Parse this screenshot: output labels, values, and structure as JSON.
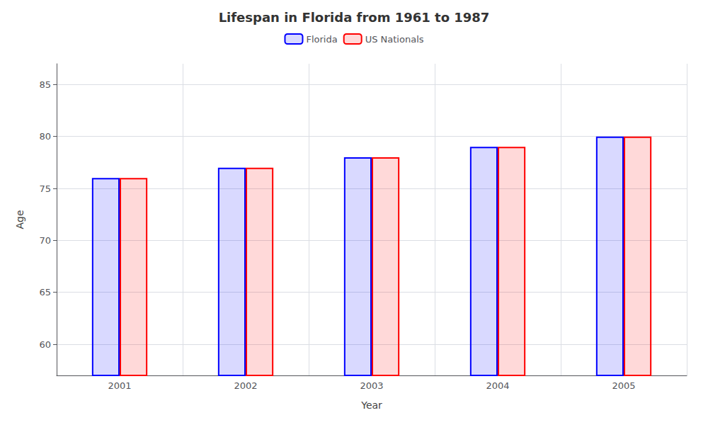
{
  "chart_data": {
    "type": "bar",
    "title": "Lifespan in Florida from 1961 to 1987",
    "xlabel": "Year",
    "ylabel": "Age",
    "categories": [
      "2001",
      "2002",
      "2003",
      "2004",
      "2005"
    ],
    "series": [
      {
        "name": "Florida",
        "color": "#0000ff",
        "values": [
          76,
          77,
          78,
          79,
          80
        ]
      },
      {
        "name": "US Nationals",
        "color": "#ff0000",
        "values": [
          76,
          77,
          78,
          79,
          80
        ]
      }
    ],
    "ylim": [
      57,
      87
    ],
    "yticks": [
      60,
      65,
      70,
      75,
      80,
      85
    ],
    "grid": true,
    "legend": "top"
  }
}
